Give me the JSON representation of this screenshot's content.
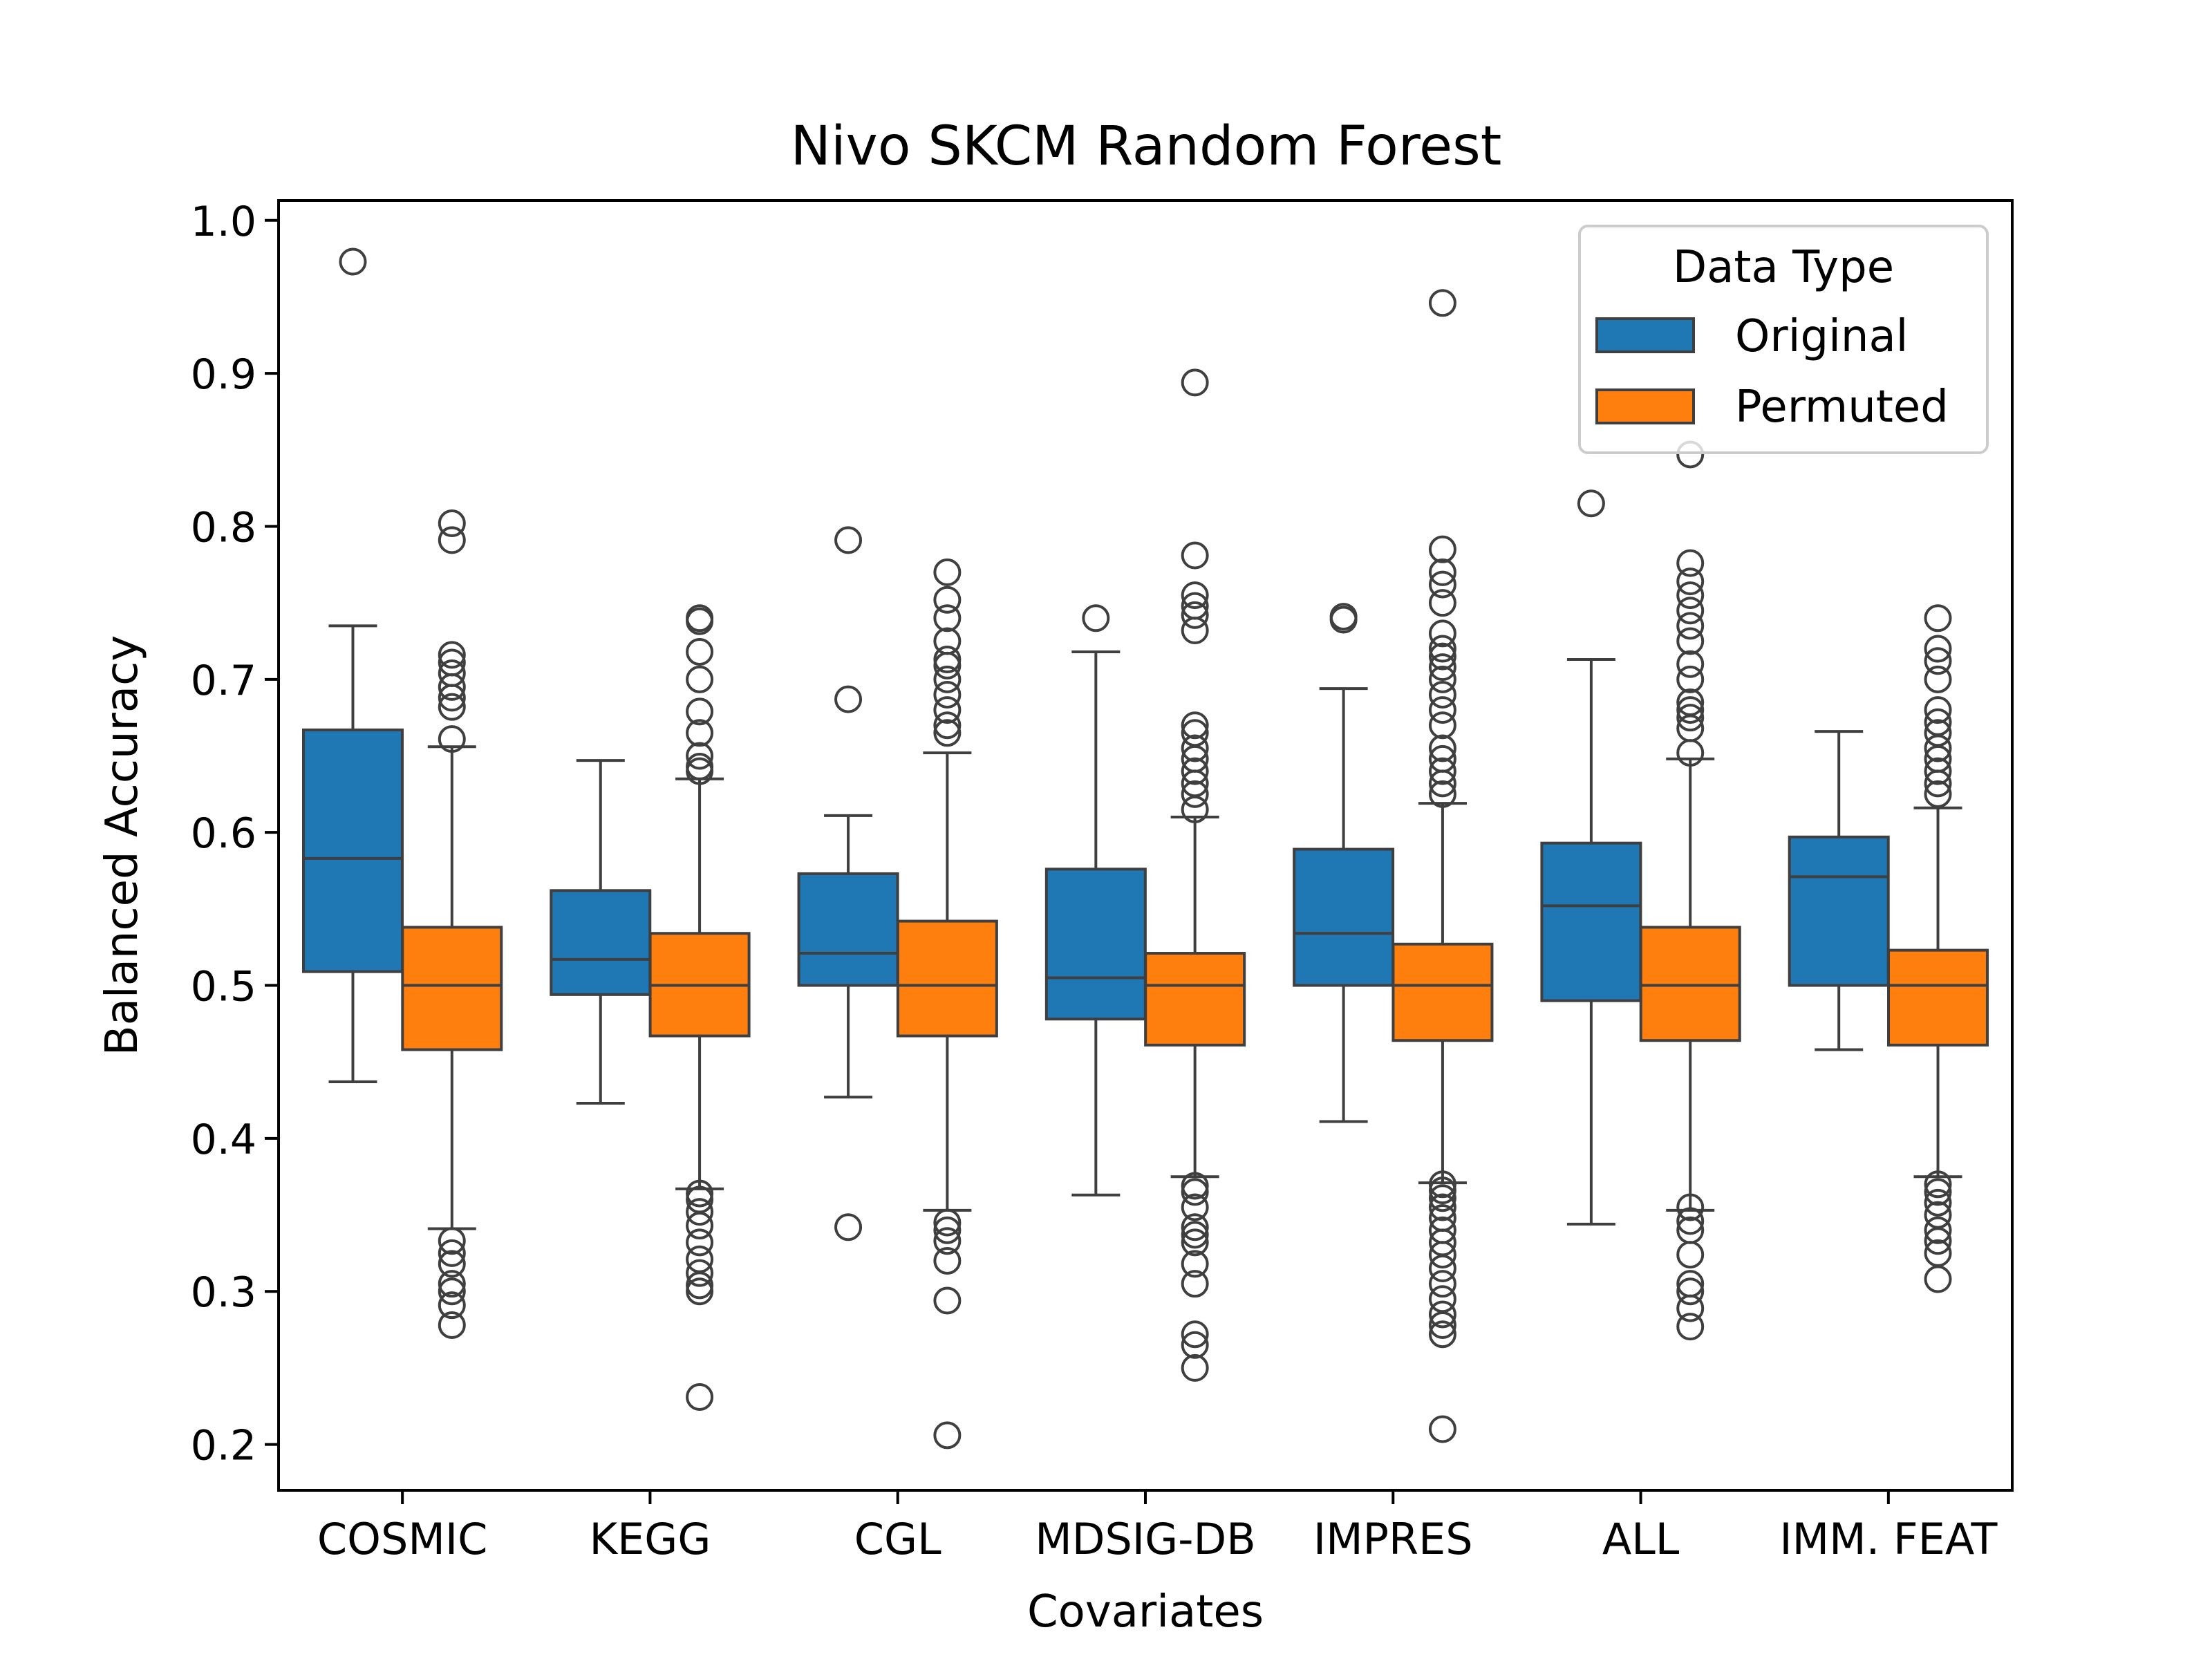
{
  "chart_data": {
    "type": "box",
    "title": "Nivo  SKCM  Random Forest",
    "xlabel": "Covariates",
    "ylabel": "Balanced Accuracy",
    "ylim": [
      0.17,
      1.013
    ],
    "yticks": [
      0.2,
      0.3,
      0.4,
      0.5,
      0.6,
      0.7,
      0.8,
      0.9,
      1.0
    ],
    "ytick_labels": [
      "0.2",
      "0.3",
      "0.4",
      "0.5",
      "0.6",
      "0.7",
      "0.8",
      "0.9",
      "1.0"
    ],
    "categories": [
      "COSMIC",
      "KEGG",
      "CGL",
      "MDSIG-DB",
      "IMPRES",
      "ALL",
      "IMM. FEAT"
    ],
    "grid": false,
    "legend": {
      "title": "Data Type",
      "position": "top-right",
      "entries": [
        "Original",
        "Permuted"
      ]
    },
    "series": [
      {
        "name": "Original",
        "color": "#1f77b4",
        "boxes": [
          {
            "whislo": 0.437,
            "q1": 0.509,
            "med": 0.583,
            "q3": 0.667,
            "whishi": 0.735,
            "fliers": [
              0.973
            ]
          },
          {
            "whislo": 0.423,
            "q1": 0.494,
            "med": 0.517,
            "q3": 0.562,
            "whishi": 0.647,
            "fliers": []
          },
          {
            "whislo": 0.427,
            "q1": 0.5,
            "med": 0.521,
            "q3": 0.573,
            "whishi": 0.611,
            "fliers": [
              0.791,
              0.687,
              0.342
            ]
          },
          {
            "whislo": 0.363,
            "q1": 0.478,
            "med": 0.505,
            "q3": 0.576,
            "whishi": 0.718,
            "fliers": [
              0.74
            ]
          },
          {
            "whislo": 0.411,
            "q1": 0.5,
            "med": 0.534,
            "q3": 0.589,
            "whishi": 0.694,
            "fliers": [
              0.741,
              0.739
            ]
          },
          {
            "whislo": 0.344,
            "q1": 0.49,
            "med": 0.552,
            "q3": 0.593,
            "whishi": 0.713,
            "fliers": [
              0.815
            ]
          },
          {
            "whislo": 0.458,
            "q1": 0.5,
            "med": 0.571,
            "q3": 0.597,
            "whishi": 0.666,
            "fliers": []
          }
        ]
      },
      {
        "name": "Permuted",
        "color": "#ff7f0e",
        "boxes": [
          {
            "whislo": 0.341,
            "q1": 0.458,
            "med": 0.5,
            "q3": 0.538,
            "whishi": 0.656,
            "fliers": [
              0.802,
              0.791,
              0.716,
              0.711,
              0.704,
              0.695,
              0.688,
              0.682,
              0.661,
              0.333,
              0.325,
              0.318,
              0.305,
              0.3,
              0.291,
              0.278
            ]
          },
          {
            "whislo": 0.367,
            "q1": 0.467,
            "med": 0.5,
            "q3": 0.534,
            "whishi": 0.635,
            "fliers": [
              0.74,
              0.738,
              0.718,
              0.7,
              0.679,
              0.665,
              0.65,
              0.643,
              0.64,
              0.364,
              0.36,
              0.352,
              0.343,
              0.332,
              0.321,
              0.312,
              0.304,
              0.3,
              0.231
            ]
          },
          {
            "whislo": 0.353,
            "q1": 0.467,
            "med": 0.5,
            "q3": 0.542,
            "whishi": 0.652,
            "fliers": [
              0.77,
              0.752,
              0.74,
              0.725,
              0.713,
              0.709,
              0.7,
              0.69,
              0.68,
              0.67,
              0.665,
              0.345,
              0.34,
              0.333,
              0.32,
              0.294,
              0.206
            ]
          },
          {
            "whislo": 0.375,
            "q1": 0.461,
            "med": 0.5,
            "q3": 0.521,
            "whishi": 0.61,
            "fliers": [
              0.894,
              0.781,
              0.755,
              0.748,
              0.742,
              0.732,
              0.67,
              0.665,
              0.655,
              0.648,
              0.64,
              0.632,
              0.625,
              0.615,
              0.369,
              0.365,
              0.355,
              0.342,
              0.337,
              0.332,
              0.318,
              0.305,
              0.272,
              0.265,
              0.25
            ]
          },
          {
            "whislo": 0.371,
            "q1": 0.464,
            "med": 0.5,
            "q3": 0.527,
            "whishi": 0.619,
            "fliers": [
              0.946,
              0.785,
              0.77,
              0.762,
              0.75,
              0.73,
              0.72,
              0.715,
              0.708,
              0.7,
              0.69,
              0.68,
              0.67,
              0.655,
              0.648,
              0.64,
              0.632,
              0.625,
              0.37,
              0.366,
              0.361,
              0.355,
              0.348,
              0.34,
              0.332,
              0.324,
              0.315,
              0.305,
              0.295,
              0.285,
              0.278,
              0.272,
              0.21
            ]
          },
          {
            "whislo": 0.353,
            "q1": 0.464,
            "med": 0.5,
            "q3": 0.538,
            "whishi": 0.648,
            "fliers": [
              0.847,
              0.776,
              0.764,
              0.755,
              0.745,
              0.735,
              0.725,
              0.71,
              0.7,
              0.685,
              0.68,
              0.675,
              0.668,
              0.652,
              0.355,
              0.346,
              0.34,
              0.324,
              0.305,
              0.3,
              0.289,
              0.277
            ]
          },
          {
            "whislo": 0.375,
            "q1": 0.461,
            "med": 0.5,
            "q3": 0.523,
            "whishi": 0.616,
            "fliers": [
              0.74,
              0.72,
              0.712,
              0.7,
              0.68,
              0.672,
              0.665,
              0.655,
              0.648,
              0.64,
              0.632,
              0.625,
              0.37,
              0.365,
              0.358,
              0.35,
              0.34,
              0.333,
              0.325,
              0.308
            ]
          }
        ]
      }
    ]
  }
}
